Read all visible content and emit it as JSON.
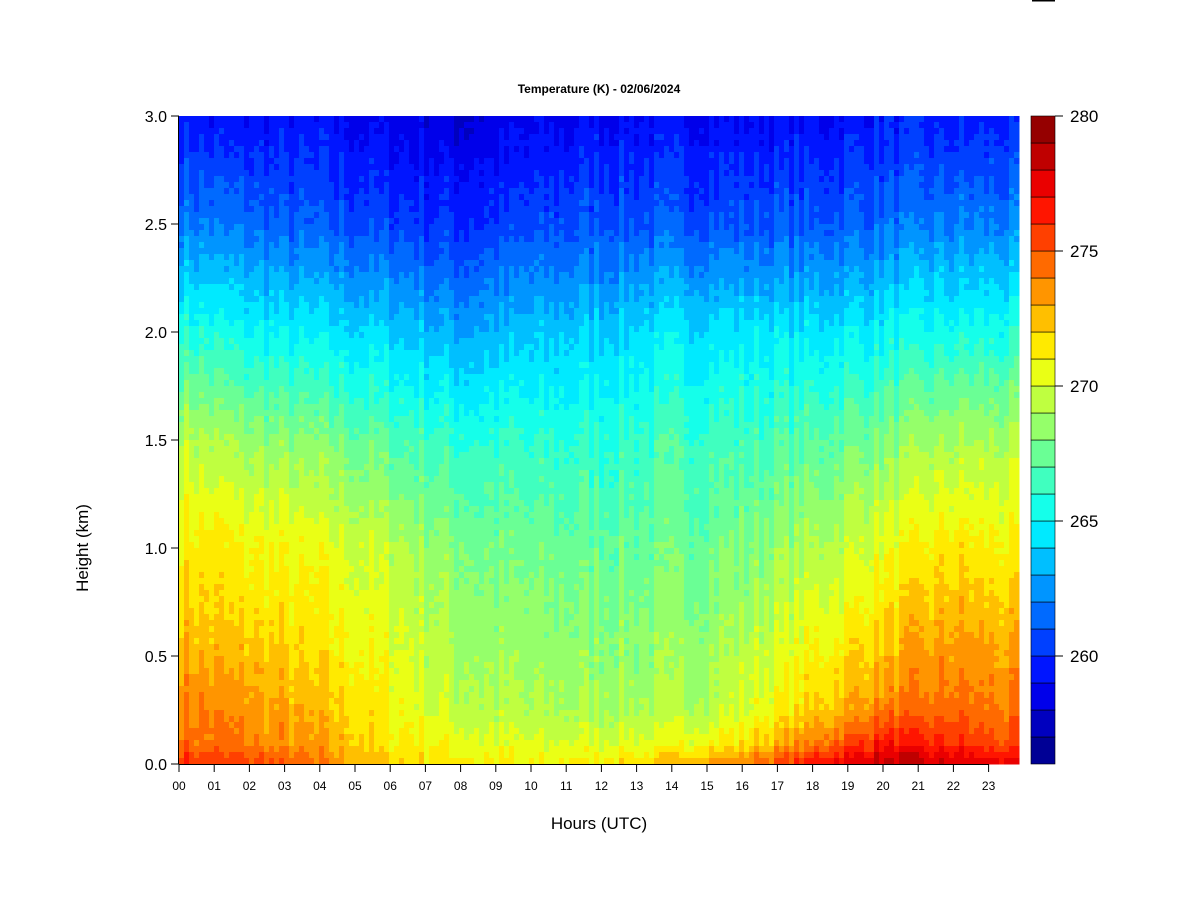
{
  "chart_data": {
    "type": "heatmap",
    "title": "Temperature (K) - 02/06/2024",
    "xlabel": "Hours (UTC)",
    "ylabel": "Height (km)",
    "xlim": [
      0,
      23.85
    ],
    "ylim": [
      0,
      3.0
    ],
    "x_ticks": [
      "00",
      "01",
      "02",
      "03",
      "04",
      "05",
      "06",
      "07",
      "08",
      "09",
      "10",
      "11",
      "12",
      "13",
      "14",
      "15",
      "16",
      "17",
      "18",
      "19",
      "20",
      "21",
      "22",
      "23"
    ],
    "y_ticks": [
      "0.0",
      "0.5",
      "1.0",
      "1.5",
      "2.0",
      "2.5",
      "3.0"
    ],
    "colorbar": {
      "range": [
        256,
        280
      ],
      "levels": 24,
      "ticks": [
        "260",
        "265",
        "270",
        "275",
        "280"
      ],
      "colormap": "jet"
    },
    "grid_hours": [
      0,
      2,
      4,
      6,
      8,
      10,
      12,
      14,
      16,
      18,
      20,
      22,
      24
    ],
    "grid_heights_km": [
      0,
      0.1,
      0.25,
      0.5,
      0.75,
      1.0,
      1.5,
      2.0,
      2.5,
      3.0
    ],
    "temperature_K": [
      [
        276,
        275.5,
        274,
        272,
        271.5,
        271,
        271.5,
        272.5,
        274,
        276.5,
        278.5,
        278,
        277
      ],
      [
        274.5,
        274,
        273,
        271.5,
        270.5,
        270,
        270,
        270.5,
        271.5,
        274,
        276.5,
        276,
        275
      ],
      [
        274,
        273.5,
        272.5,
        271,
        269.5,
        269,
        269,
        269,
        270,
        272,
        274,
        274.5,
        274
      ],
      [
        273,
        272.5,
        271.5,
        270.5,
        269,
        268.5,
        268.5,
        268.5,
        269.5,
        271,
        272.5,
        273.5,
        273
      ],
      [
        272,
        271.5,
        271,
        270,
        268.5,
        268,
        268,
        268,
        268.5,
        270,
        271.5,
        272.5,
        272
      ],
      [
        271.5,
        271,
        270.5,
        269.5,
        268,
        267.5,
        267.5,
        267.5,
        268,
        269,
        270.5,
        271.5,
        271
      ],
      [
        269.5,
        268.5,
        268,
        267,
        266,
        266,
        266,
        266.5,
        266.5,
        267,
        268,
        269,
        269
      ],
      [
        266,
        265,
        264.5,
        264,
        263,
        263.5,
        264,
        264.5,
        264.5,
        264.5,
        265,
        265.5,
        265.5
      ],
      [
        262,
        261.5,
        261,
        260.5,
        260,
        260.5,
        261,
        261,
        261,
        261,
        261.5,
        262,
        262
      ],
      [
        259.5,
        259,
        259,
        258.5,
        258,
        258.5,
        259,
        259,
        259,
        259,
        259.5,
        259.5,
        259.5
      ]
    ]
  }
}
